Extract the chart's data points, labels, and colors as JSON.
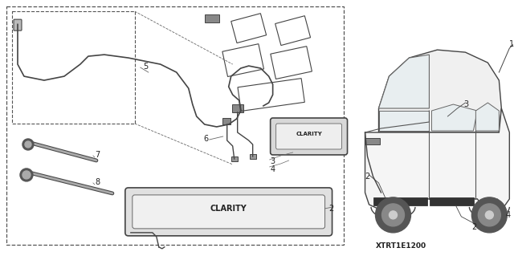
{
  "bg_color": "#ffffff",
  "diagram_code": "XTRT1E1200",
  "line_color": "#444444",
  "light_gray": "#cccccc",
  "mid_gray": "#999999"
}
